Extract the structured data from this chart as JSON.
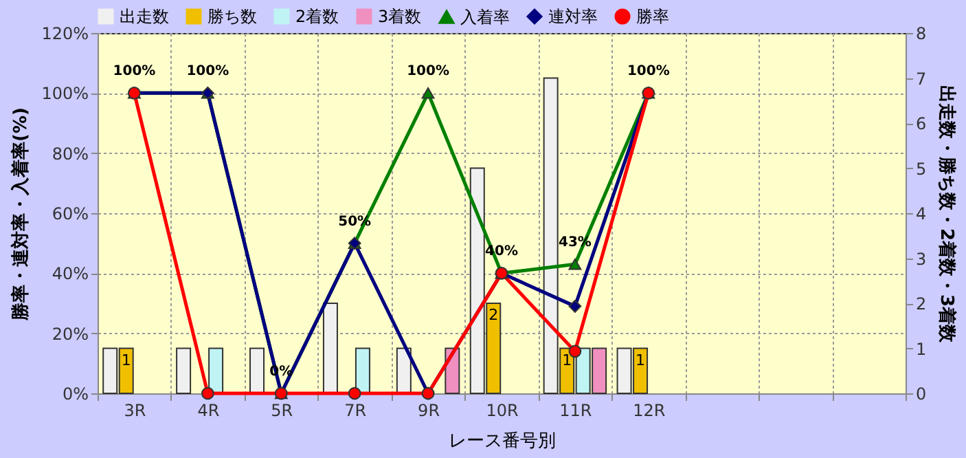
{
  "chart_data": {
    "type": "bar",
    "xlabel": "レース番号別",
    "ylabel": "勝率・連対率・入着率(%)",
    "y2label": "出走数・勝ち数・2着数・3着数",
    "categories": [
      "3R",
      "4R",
      "5R",
      "7R",
      "9R",
      "10R",
      "11R",
      "12R",
      null,
      null,
      null
    ],
    "ylim": [
      0,
      120
    ],
    "yticks": [
      {
        "value": 0,
        "label": "0%"
      },
      {
        "value": 20,
        "label": "20%"
      },
      {
        "value": 40,
        "label": "40%"
      },
      {
        "value": 60,
        "label": "60%"
      },
      {
        "value": 80,
        "label": "80%"
      },
      {
        "value": 100,
        "label": "100%"
      },
      {
        "value": 120,
        "label": "120%"
      }
    ],
    "y2lim": [
      0,
      8
    ],
    "y2ticks": [
      0,
      1,
      2,
      3,
      4,
      5,
      6,
      7,
      8
    ],
    "grid": true,
    "legend": "top",
    "series": [
      {
        "name": "出走数",
        "axis": "y2",
        "color": "#f0f0f0",
        "values": [
          1,
          1,
          1,
          2,
          1,
          5,
          7,
          1,
          null,
          null,
          null
        ]
      },
      {
        "name": "勝ち数",
        "axis": "y2",
        "color": "#f0c000",
        "values": [
          1,
          0,
          0,
          0,
          0,
          2,
          1,
          1,
          null,
          null,
          null
        ],
        "value_labels": [
          "1",
          null,
          null,
          null,
          null,
          "2",
          "1",
          "1",
          null,
          null,
          null
        ]
      },
      {
        "name": "2着数",
        "axis": "y2",
        "color": "#c0f4f4",
        "values": [
          0,
          1,
          0,
          1,
          0,
          0,
          1,
          0,
          null,
          null,
          null
        ]
      },
      {
        "name": "3着数",
        "axis": "y2",
        "color": "#f090c0",
        "values": [
          0,
          0,
          0,
          0,
          1,
          0,
          1,
          0,
          null,
          null,
          null
        ]
      },
      {
        "name": "入着率",
        "type": "line",
        "color": "#008000",
        "marker": "triangle",
        "values": [
          100,
          100,
          0,
          50,
          100,
          40,
          43,
          100,
          null,
          null,
          null
        ],
        "value_labels": [
          "100%",
          "100%",
          "0%",
          "50%",
          "100%",
          "40%",
          "43%",
          "100%",
          null,
          null,
          null
        ]
      },
      {
        "name": "連対率",
        "type": "line",
        "color": "#000080",
        "marker": "diamond",
        "values": [
          100,
          100,
          0,
          50,
          0,
          40,
          29,
          100,
          null,
          null,
          null
        ]
      },
      {
        "name": "勝率",
        "type": "line",
        "color": "#ff0000",
        "marker": "circle",
        "values": [
          100,
          0,
          0,
          0,
          0,
          40,
          14,
          100,
          null,
          null,
          null
        ]
      }
    ]
  }
}
